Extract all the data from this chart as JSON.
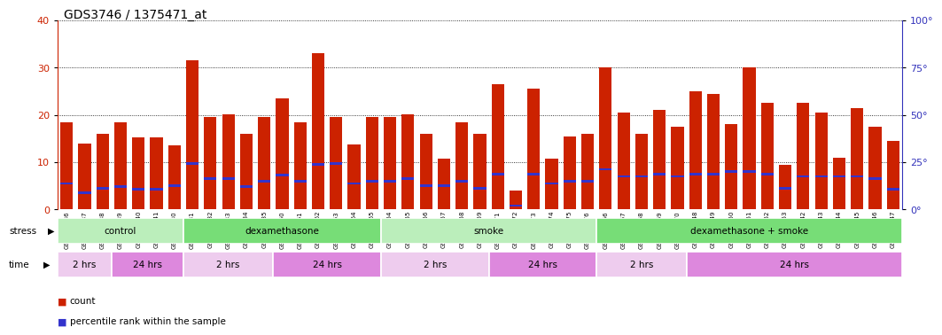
{
  "title": "GDS3746 / 1375471_at",
  "samples": [
    "GSM389536",
    "GSM389537",
    "GSM389538",
    "GSM389539",
    "GSM389540",
    "GSM389541",
    "GSM389530",
    "GSM389531",
    "GSM389532",
    "GSM389533",
    "GSM389534",
    "GSM389535",
    "GSM389560",
    "GSM389561",
    "GSM389562",
    "GSM389563",
    "GSM389564",
    "GSM389565",
    "GSM389554",
    "GSM389555",
    "GSM389556",
    "GSM389557",
    "GSM389558",
    "GSM389559",
    "GSM389571",
    "GSM389572",
    "GSM389573",
    "GSM389574",
    "GSM389575",
    "GSM389576",
    "GSM389566",
    "GSM389567",
    "GSM389568",
    "GSM389569",
    "GSM389570",
    "GSM389548",
    "GSM389549",
    "GSM389550",
    "GSM389551",
    "GSM389552",
    "GSM389553",
    "GSM389542",
    "GSM389543",
    "GSM389544",
    "GSM389545",
    "GSM389546",
    "GSM389547"
  ],
  "counts": [
    18.5,
    14.0,
    16.0,
    18.5,
    15.2,
    15.2,
    13.5,
    31.5,
    19.5,
    20.2,
    16.0,
    19.5,
    23.5,
    18.5,
    33.0,
    19.5,
    13.8,
    19.5,
    19.5,
    20.2,
    16.0,
    10.8,
    18.5,
    16.0,
    26.5,
    4.0,
    25.5,
    10.8,
    15.5,
    16.0,
    30.0,
    20.5,
    16.0,
    21.0,
    17.5,
    25.0,
    24.5,
    18.0,
    30.0,
    22.5,
    9.5,
    22.5,
    20.5,
    11.0,
    21.5,
    17.5,
    14.5
  ],
  "percentiles": [
    5.5,
    3.5,
    4.5,
    4.8,
    4.2,
    4.2,
    5.0,
    9.8,
    6.5,
    6.5,
    4.8,
    6.0,
    7.2,
    6.0,
    9.5,
    9.8,
    5.5,
    6.0,
    6.0,
    6.5,
    5.0,
    5.0,
    6.0,
    4.5,
    7.5,
    0.8,
    7.5,
    5.5,
    6.0,
    6.0,
    8.5,
    7.0,
    7.0,
    7.5,
    7.0,
    7.5,
    7.5,
    8.0,
    8.0,
    7.5,
    4.5,
    7.0,
    7.0,
    7.0,
    7.0,
    6.5,
    4.2
  ],
  "bar_color": "#CC2200",
  "blue_color": "#3333CC",
  "ylim_left": [
    0,
    40
  ],
  "ylim_right": [
    0,
    100
  ],
  "yticks_left": [
    0,
    10,
    20,
    30,
    40
  ],
  "yticks_right": [
    0,
    25,
    50,
    75,
    100
  ],
  "stress_groups": [
    {
      "label": "control",
      "start": 0,
      "end": 7,
      "color": "#BBEEBB"
    },
    {
      "label": "dexamethasone",
      "start": 7,
      "end": 18,
      "color": "#77DD77"
    },
    {
      "label": "smoke",
      "start": 18,
      "end": 30,
      "color": "#BBEEBB"
    },
    {
      "label": "dexamethasone + smoke",
      "start": 30,
      "end": 47,
      "color": "#77DD77"
    }
  ],
  "time_groups": [
    {
      "label": "2 hrs",
      "start": 0,
      "end": 3,
      "color": "#EECCEE"
    },
    {
      "label": "24 hrs",
      "start": 3,
      "end": 7,
      "color": "#DD88DD"
    },
    {
      "label": "2 hrs",
      "start": 7,
      "end": 12,
      "color": "#EECCEE"
    },
    {
      "label": "24 hrs",
      "start": 12,
      "end": 18,
      "color": "#DD88DD"
    },
    {
      "label": "2 hrs",
      "start": 18,
      "end": 24,
      "color": "#EECCEE"
    },
    {
      "label": "24 hrs",
      "start": 24,
      "end": 30,
      "color": "#DD88DD"
    },
    {
      "label": "2 hrs",
      "start": 30,
      "end": 35,
      "color": "#EECCEE"
    },
    {
      "label": "24 hrs",
      "start": 35,
      "end": 47,
      "color": "#DD88DD"
    }
  ],
  "legend_count_color": "#CC2200",
  "legend_blue_color": "#3333CC",
  "title_fontsize": 10,
  "axis_color_left": "#CC2200",
  "axis_color_right": "#3333BB",
  "bg_color": "#FFFFFF"
}
